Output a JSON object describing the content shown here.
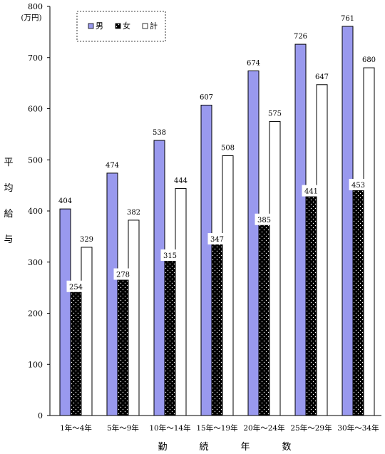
{
  "chart_data": {
    "type": "bar",
    "unit_label": "(万円)",
    "ylabel": "平均給与",
    "xlabel": "勤続年数",
    "ylim": [
      0,
      800
    ],
    "yticks": [
      0,
      100,
      200,
      300,
      400,
      500,
      600,
      700,
      800
    ],
    "grid": false,
    "legend_position": "top-left",
    "categories": [
      "1年～4年",
      "5年～9年",
      "10年～14年",
      "15年～19年",
      "20年～24年",
      "25年～29年",
      "30年～34年"
    ],
    "series": [
      {
        "name": "男",
        "values": [
          404,
          474,
          538,
          607,
          674,
          726,
          761
        ],
        "color": "#9999ee",
        "pattern": "solid"
      },
      {
        "name": "女",
        "values": [
          254,
          278,
          315,
          347,
          385,
          441,
          453
        ],
        "color": "#000000",
        "pattern": "dotted"
      },
      {
        "name": "計",
        "values": [
          329,
          382,
          444,
          508,
          575,
          647,
          680
        ],
        "color": "#ffffff",
        "pattern": "solid"
      }
    ]
  }
}
